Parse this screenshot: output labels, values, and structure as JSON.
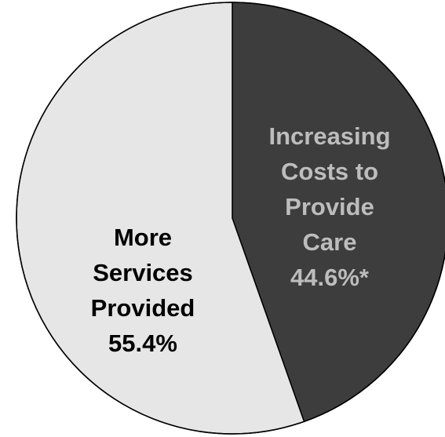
{
  "chart_data": {
    "type": "pie",
    "title": "",
    "slices": [
      {
        "label_lines": [
          "Increasing",
          "Costs to",
          "Provide",
          "Care"
        ],
        "value_label": "44.6%*",
        "value": 44.6,
        "color": "#3d3d3d",
        "text_color": "#bdbdbd"
      },
      {
        "label_lines": [
          "More",
          "Services",
          "Provided"
        ],
        "value_label": "55.4%",
        "value": 55.4,
        "color": "#e6e6e6",
        "text_color": "#000000"
      }
    ],
    "start": "top",
    "direction": "clockwise",
    "outline_color": "#000000",
    "legend": "none"
  }
}
